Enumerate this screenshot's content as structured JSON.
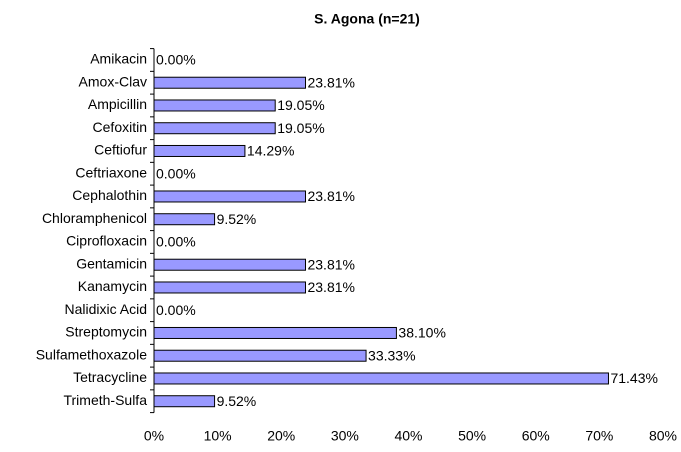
{
  "chart_data": {
    "type": "bar",
    "orientation": "horizontal",
    "title": "S. Agona (n=21)",
    "categories": [
      "Amikacin",
      "Amox-Clav",
      "Ampicillin",
      "Cefoxitin",
      "Ceftiofur",
      "Ceftriaxone",
      "Cephalothin",
      "Chloramphenicol",
      "Ciprofloxacin",
      "Gentamicin",
      "Kanamycin",
      "Nalidixic Acid",
      "Streptomycin",
      "Sulfamethoxazole",
      "Tetracycline",
      "Trimeth-Sulfa"
    ],
    "values": [
      0,
      23.81,
      19.05,
      19.05,
      14.29,
      0,
      23.81,
      9.52,
      0,
      23.81,
      23.81,
      0,
      38.1,
      33.33,
      71.43,
      9.52
    ],
    "value_labels": [
      "0.00%",
      "23.81%",
      "19.05%",
      "19.05%",
      "14.29%",
      "0.00%",
      "23.81%",
      "9.52%",
      "0.00%",
      "23.81%",
      "23.81%",
      "0.00%",
      "38.10%",
      "33.33%",
      "71.43%",
      "9.52%"
    ],
    "color": "#9999ff",
    "xlim": [
      0,
      80
    ],
    "xticks": [
      {
        "value": 0,
        "label": "0%"
      },
      {
        "value": 10,
        "label": "10%"
      },
      {
        "value": 20,
        "label": "20%"
      },
      {
        "value": 30,
        "label": "30%"
      },
      {
        "value": 40,
        "label": "40%"
      },
      {
        "value": 50,
        "label": "50%"
      },
      {
        "value": 60,
        "label": "60%"
      },
      {
        "value": 70,
        "label": "70%"
      },
      {
        "value": 80,
        "label": "80%"
      }
    ],
    "grid": false
  }
}
